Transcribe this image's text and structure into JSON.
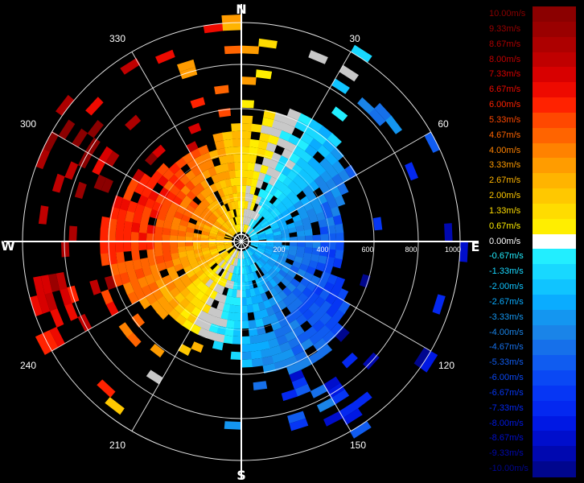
{
  "chart_data": {
    "type": "polar-radial-velocity",
    "cardinals": [
      "N",
      "E",
      "S",
      "W"
    ],
    "bearing_labels": [
      "30",
      "60",
      "120",
      "150",
      "210",
      "240",
      "300",
      "330"
    ],
    "range_labels": [
      "200",
      "400",
      "600",
      "800",
      "1000"
    ],
    "legend": [
      {
        "label": "10.00m/s",
        "value": 10.0,
        "color": "#8b0000"
      },
      {
        "label": "9.33m/s",
        "value": 9.33,
        "color": "#9a0000"
      },
      {
        "label": "8.67m/s",
        "value": 8.67,
        "color": "#ad0000"
      },
      {
        "label": "8.00m/s",
        "value": 8.0,
        "color": "#c00000"
      },
      {
        "label": "7.33m/s",
        "value": 7.33,
        "color": "#d80000"
      },
      {
        "label": "6.67m/s",
        "value": 6.67,
        "color": "#ee0a00"
      },
      {
        "label": "6.00m/s",
        "value": 6.0,
        "color": "#ff2200"
      },
      {
        "label": "5.33m/s",
        "value": 5.33,
        "color": "#ff4800"
      },
      {
        "label": "4.67m/s",
        "value": 4.67,
        "color": "#ff6400"
      },
      {
        "label": "4.00m/s",
        "value": 4.0,
        "color": "#ff8200"
      },
      {
        "label": "3.33m/s",
        "value": 3.33,
        "color": "#ff9c00"
      },
      {
        "label": "2.67m/s",
        "value": 2.67,
        "color": "#ffb400"
      },
      {
        "label": "2.00m/s",
        "value": 2.0,
        "color": "#ffc800"
      },
      {
        "label": "1.33m/s",
        "value": 1.33,
        "color": "#ffdc00"
      },
      {
        "label": "0.67m/s",
        "value": 0.67,
        "color": "#ffee00"
      },
      {
        "label": "0.00m/s",
        "value": 0.0,
        "color": "#ffffff"
      },
      {
        "label": "-0.67m/s",
        "value": -0.67,
        "color": "#22eeff"
      },
      {
        "label": "-1.33m/s",
        "value": -1.33,
        "color": "#18d8ff"
      },
      {
        "label": "-2.00m/s",
        "value": -2.0,
        "color": "#10c4ff"
      },
      {
        "label": "-2.67m/s",
        "value": -2.67,
        "color": "#0aacff"
      },
      {
        "label": "-3.33m/s",
        "value": -3.33,
        "color": "#1496f0"
      },
      {
        "label": "-4.00m/s",
        "value": -4.0,
        "color": "#1a84e8"
      },
      {
        "label": "-4.67m/s",
        "value": -4.67,
        "color": "#1670ea"
      },
      {
        "label": "-5.33m/s",
        "value": -5.33,
        "color": "#105cf0"
      },
      {
        "label": "-6.00m/s",
        "value": -6.0,
        "color": "#0a48f4"
      },
      {
        "label": "-6.67m/s",
        "value": -6.67,
        "color": "#0636f4"
      },
      {
        "label": "-7.33m/s",
        "value": -7.33,
        "color": "#0428f0"
      },
      {
        "label": "-8.00m/s",
        "value": -8.0,
        "color": "#0018e4"
      },
      {
        "label": "-8.67m/s",
        "value": -8.67,
        "color": "#000ecc"
      },
      {
        "label": "-9.33m/s",
        "value": -9.33,
        "color": "#0008b0"
      },
      {
        "label": "-10.00m/s",
        "value": -10.0,
        "color": "#00068e"
      }
    ]
  }
}
